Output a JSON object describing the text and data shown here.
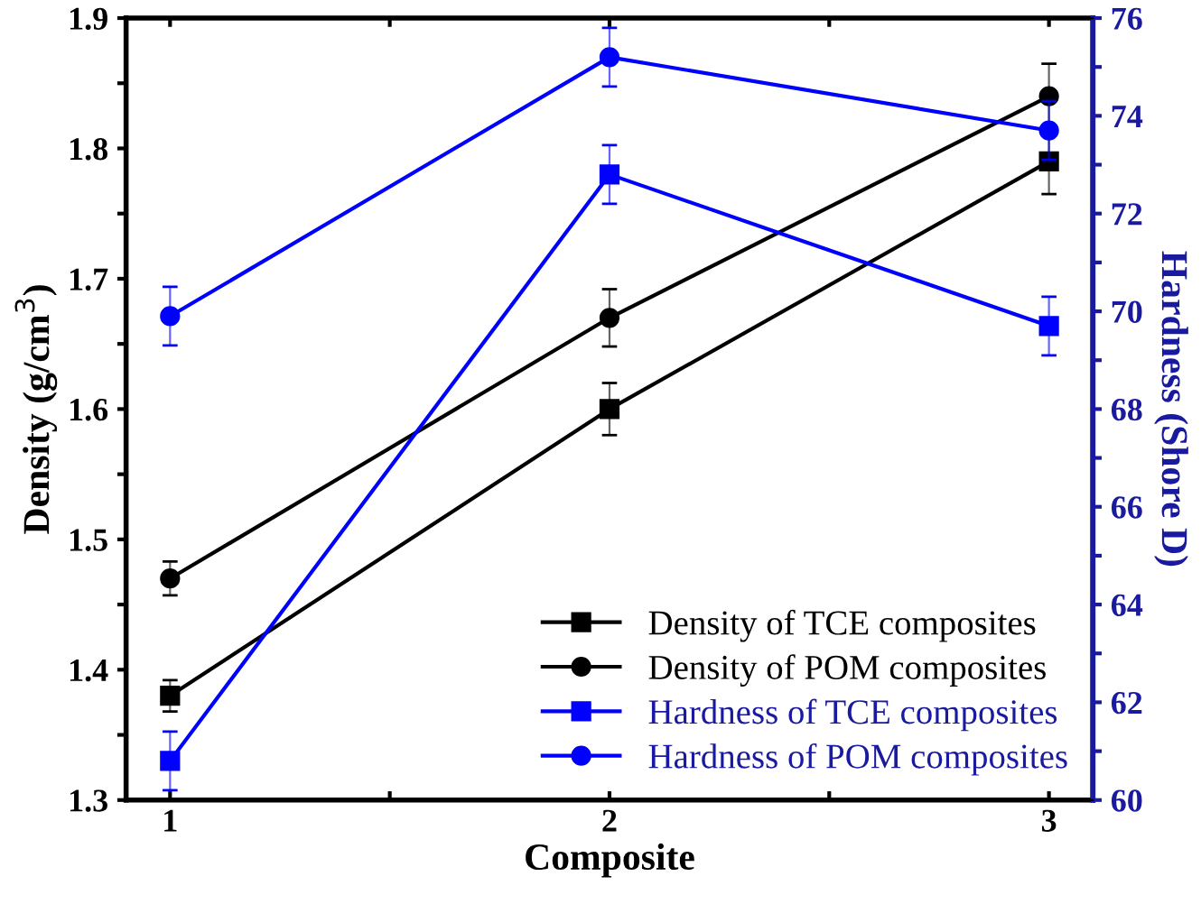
{
  "chart_data": {
    "type": "line",
    "xlabel": "Composite",
    "ylabel": "Density (g/cm$^{3}$)",
    "y2label": "Hardness (Shore D)",
    "x": [
      1,
      2,
      3
    ],
    "xlim": [
      0.9,
      3.1
    ],
    "xticks": [
      1,
      {
        "value": 1.5,
        "label": null
      },
      2,
      {
        "value": 2.5,
        "label": null
      },
      3
    ],
    "ylim": [
      1.3,
      1.9
    ],
    "yticks": [
      1.3,
      {
        "value": 1.35,
        "label": null
      },
      1.4,
      {
        "value": 1.45,
        "label": null
      },
      1.5,
      {
        "value": 1.55,
        "label": null
      },
      1.6,
      {
        "value": 1.65,
        "label": null
      },
      1.7,
      {
        "value": 1.75,
        "label": null
      },
      1.8,
      {
        "value": 1.85,
        "label": null
      },
      1.9
    ],
    "y2lim": [
      60,
      76
    ],
    "y2ticks": [
      60,
      {
        "value": 61,
        "label": null
      },
      62,
      {
        "value": 63,
        "label": null
      },
      64,
      {
        "value": 65,
        "label": null
      },
      66,
      {
        "value": 67,
        "label": null
      },
      68,
      {
        "value": 69,
        "label": null
      },
      70,
      {
        "value": 71,
        "label": null
      },
      72,
      {
        "value": 73,
        "label": null
      },
      74,
      {
        "value": 75,
        "label": null
      },
      76
    ],
    "grid": false,
    "legend": "bottom right",
    "line_style": "solid",
    "series": [
      {
        "name": "Density of TCE composites",
        "color": "#000000",
        "marker": "square",
        "values": [
          1.38,
          1.6,
          1.79
        ],
        "errors": [
          0.012,
          0.02,
          0.025
        ]
      },
      {
        "name": "Density of POM composites",
        "color": "#000000",
        "marker": "circle",
        "values": [
          1.47,
          1.67,
          1.84
        ],
        "errors": [
          0.013,
          0.022,
          0.025
        ]
      },
      {
        "name": "Hardness of TCE composites",
        "color": "#0000ff",
        "marker": "square",
        "axis": "y2",
        "values": [
          60.8,
          72.8,
          69.7
        ],
        "errors": [
          0.6,
          0.6,
          0.6
        ]
      },
      {
        "name": "Hardness of POM composites",
        "color": "#0000ff",
        "marker": "circle",
        "axis": "y2",
        "values": [
          69.9,
          75.2,
          73.7
        ],
        "errors": [
          0.6,
          0.6,
          0.6
        ]
      }
    ]
  }
}
